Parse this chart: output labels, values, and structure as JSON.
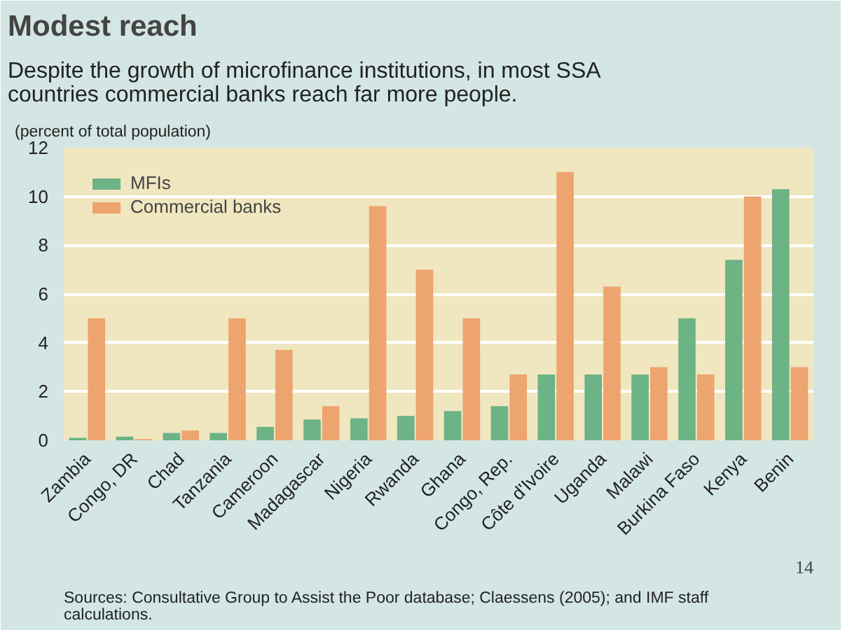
{
  "chart_data": {
    "type": "bar",
    "title": "Modest reach",
    "subtitle": "Despite the growth of microfinance institutions, in most SSA countries commercial banks reach far more people.",
    "ylabel": "(percent of total population)",
    "categories": [
      "Zambia",
      "Congo, DR",
      "Chad",
      "Tanzania",
      "Cameroon",
      "Madagascar",
      "Nigeria",
      "Rwanda",
      "Ghana",
      "Congo, Rep.",
      "Côte d'Ivoire",
      "Uganda",
      "Malawi",
      "Burkina Faso",
      "Kenya",
      "Benin"
    ],
    "series": [
      {
        "name": "MFIs",
        "color": "#6cb386",
        "values": [
          0.1,
          0.15,
          0.3,
          0.3,
          0.55,
          0.85,
          0.9,
          1.0,
          1.2,
          1.4,
          2.7,
          2.7,
          2.7,
          5.0,
          7.4,
          10.3
        ]
      },
      {
        "name": "Commercial banks",
        "color": "#eda46e",
        "values": [
          5.0,
          0.05,
          0.4,
          5.0,
          3.7,
          1.4,
          9.6,
          7.0,
          5.0,
          2.7,
          11.0,
          6.3,
          3.0,
          2.7,
          10.0,
          3.0
        ]
      }
    ],
    "ylim": [
      0,
      12
    ],
    "yticks": [
      0,
      2,
      4,
      6,
      8,
      10,
      12
    ],
    "grid": "y",
    "legend": "top left",
    "annotations": [
      "Sources: Consultative Group to Assist the Poor database; Claessens (2005); and IMF staff calculations.",
      "14"
    ]
  }
}
